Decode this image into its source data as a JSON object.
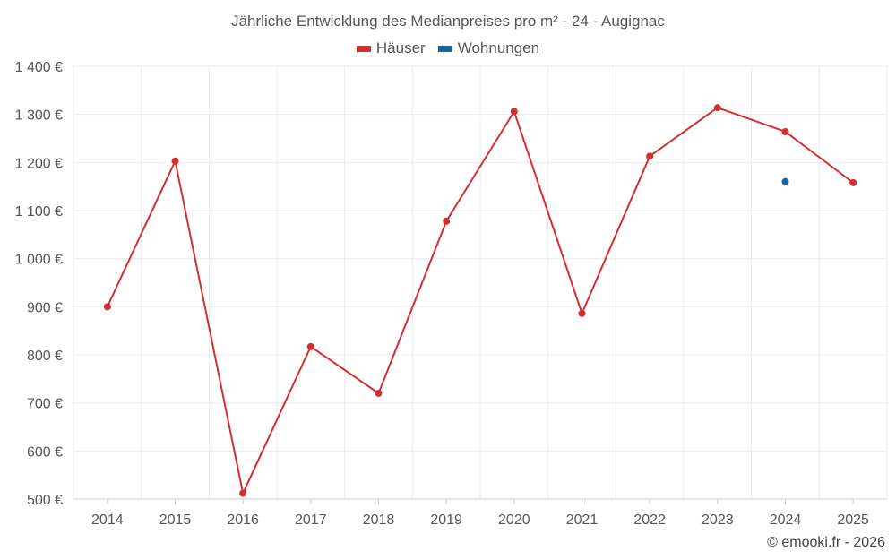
{
  "chart_data": {
    "type": "line",
    "title": "Jährliche Entwicklung des Medianpreises pro m² - 24 - Augignac",
    "categories": [
      "2014",
      "2015",
      "2016",
      "2017",
      "2018",
      "2019",
      "2020",
      "2021",
      "2022",
      "2023",
      "2024",
      "2025"
    ],
    "series": [
      {
        "name": "Häuser",
        "color": "#d32f2f",
        "values": [
          900,
          1203,
          512,
          817,
          720,
          1078,
          1306,
          886,
          1213,
          1314,
          1264,
          1158
        ]
      },
      {
        "name": "Wohnungen",
        "color": "#1565a0",
        "values": [
          null,
          null,
          null,
          null,
          null,
          null,
          null,
          null,
          null,
          null,
          1160,
          null
        ]
      }
    ],
    "yticks": [
      "1 400 €",
      "1 300 €",
      "1 200 €",
      "1 100 €",
      "1 000 €",
      "900 €",
      "800 €",
      "700 €",
      "600 €",
      "500 €"
    ],
    "ylim": [
      500,
      1400
    ],
    "grid": true,
    "legend_position": "top-center"
  },
  "credit": "© emooki.fr - 2026"
}
